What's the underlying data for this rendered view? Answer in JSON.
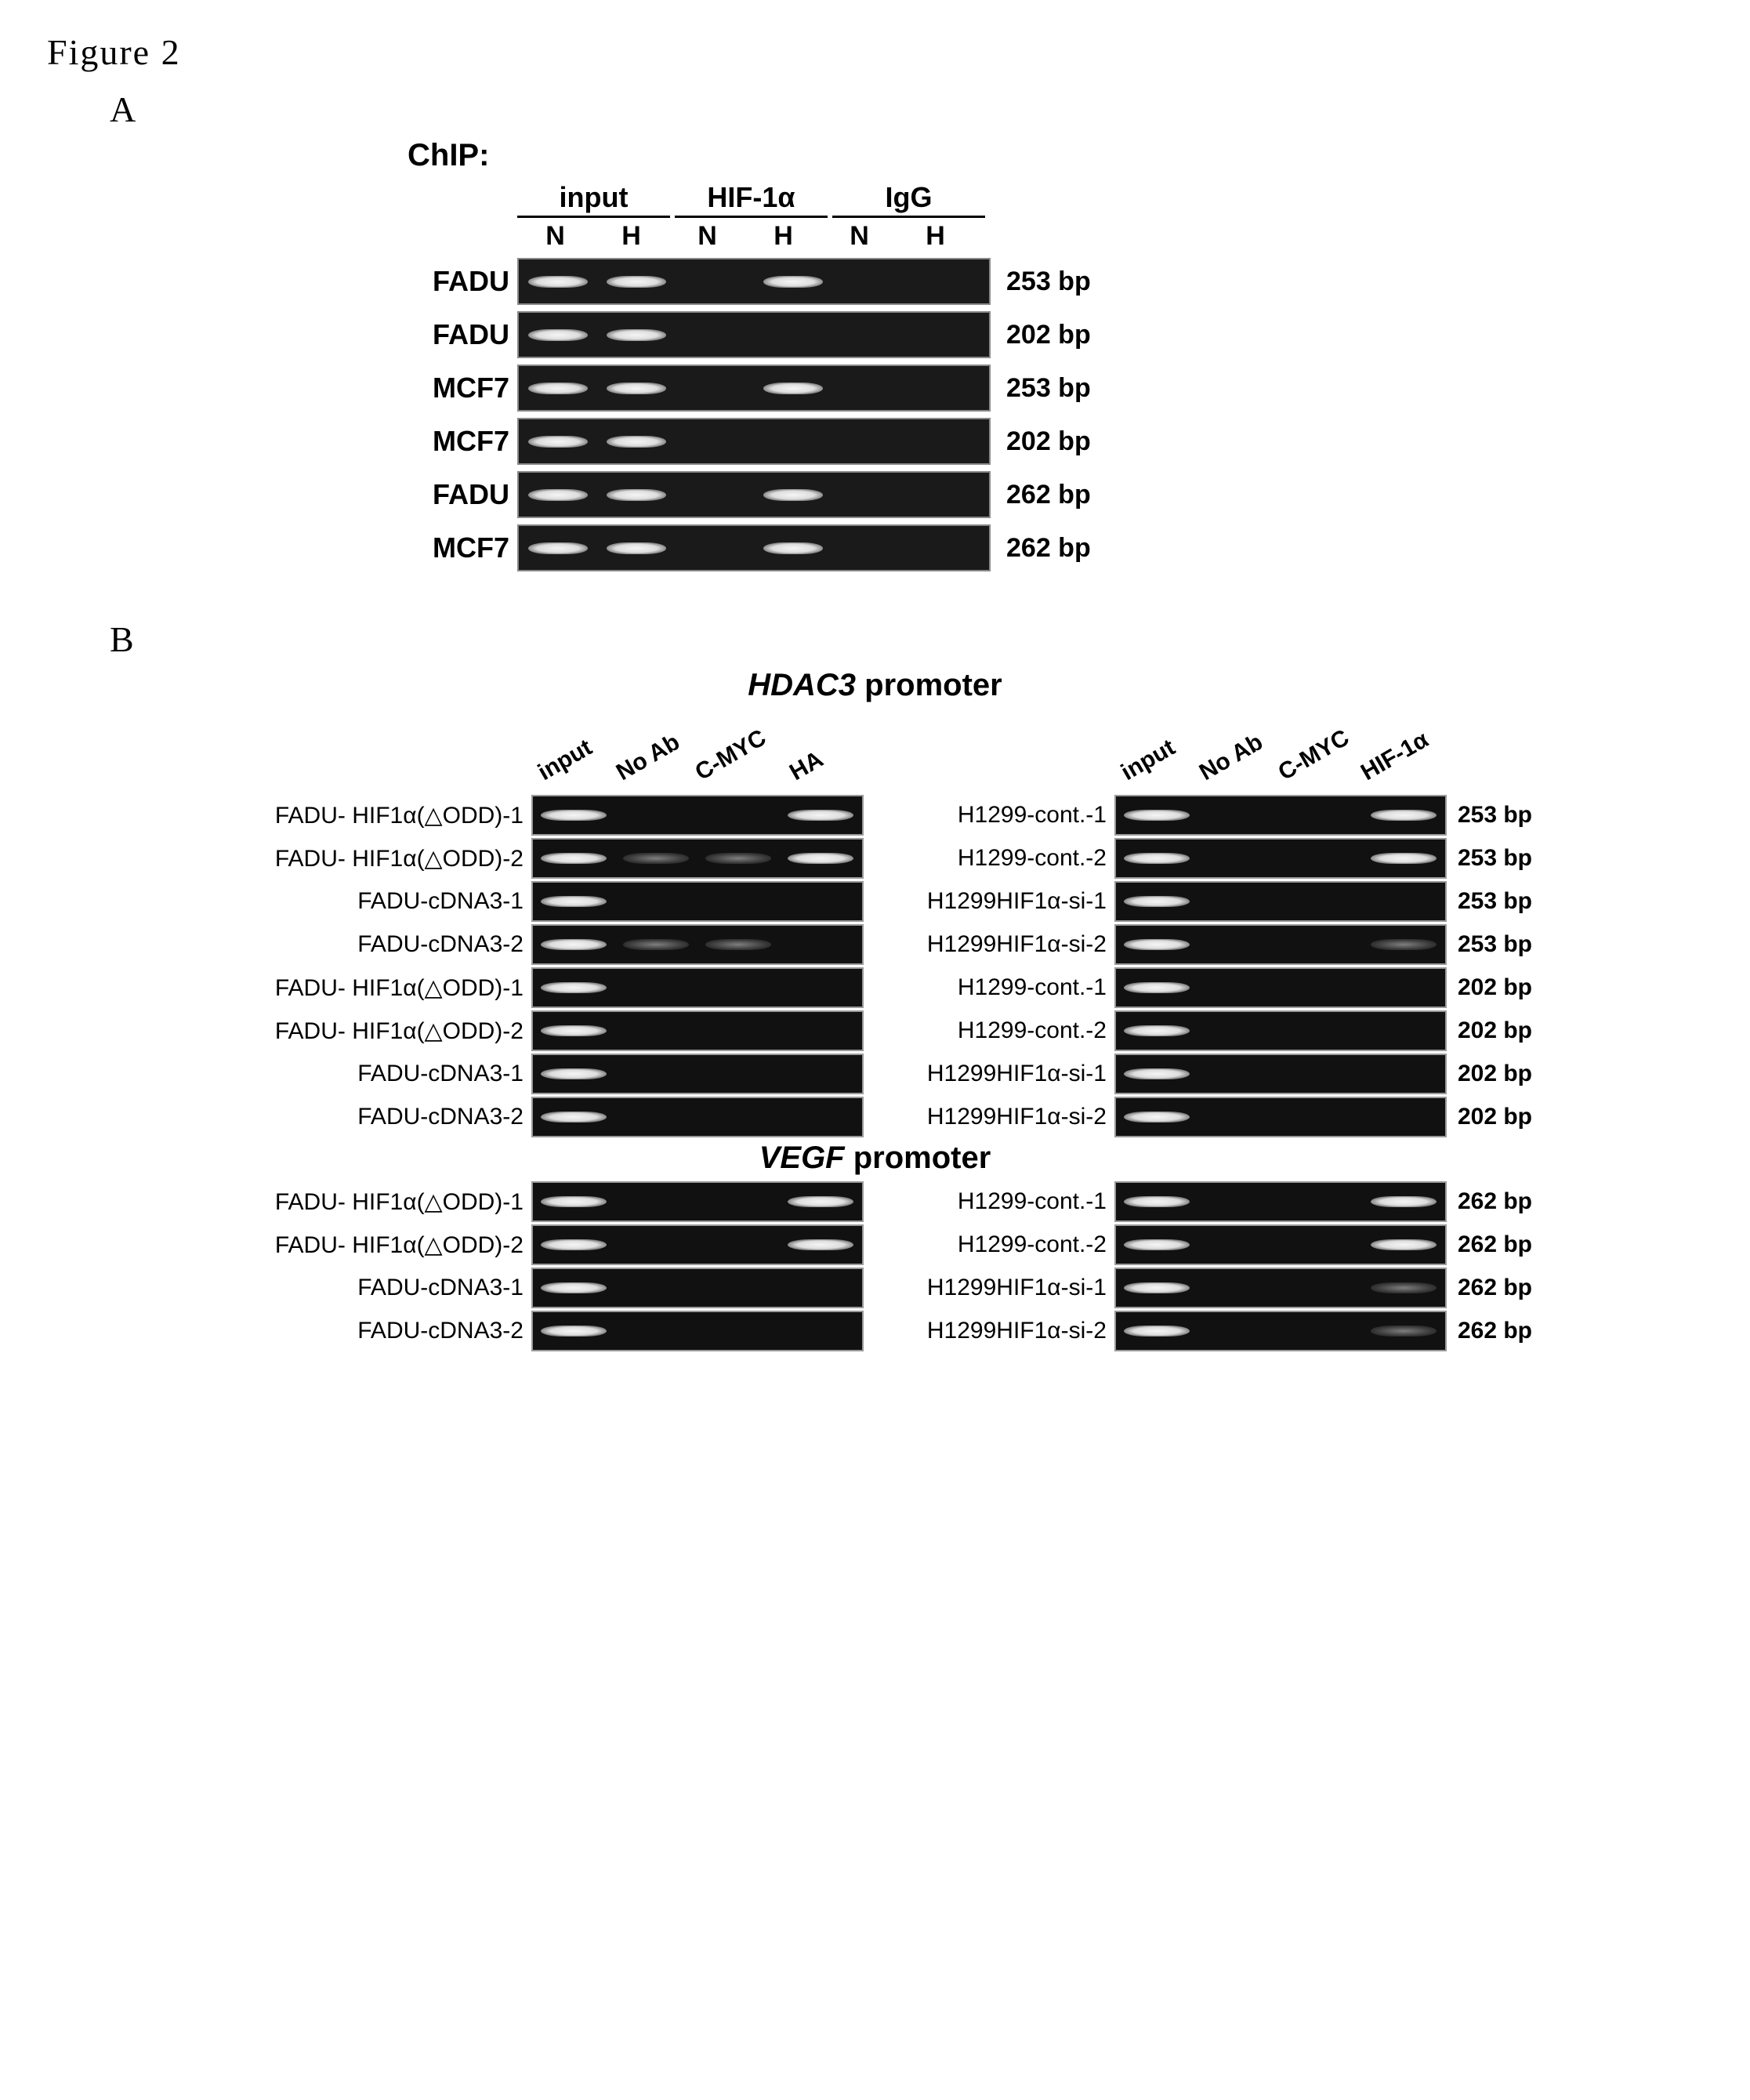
{
  "figure_label": "Figure 2",
  "panelA": {
    "label": "A",
    "chip_title": "ChIP:",
    "top_headers": [
      "input",
      "HIF-1α",
      "IgG"
    ],
    "sub_headers": [
      "N",
      "H",
      "N",
      "H",
      "N",
      "H"
    ],
    "rows": [
      {
        "label": "FADU",
        "bp": "253 bp",
        "bands": [
          1,
          1,
          0,
          1,
          0,
          0
        ]
      },
      {
        "label": "FADU",
        "bp": "202 bp",
        "bands": [
          1,
          1,
          0,
          0,
          0,
          0
        ]
      },
      {
        "label": "MCF7",
        "bp": "253 bp",
        "bands": [
          1,
          1,
          0,
          1,
          0,
          0
        ]
      },
      {
        "label": "MCF7",
        "bp": "202 bp",
        "bands": [
          1,
          1,
          0,
          0,
          0,
          0
        ]
      },
      {
        "label": "FADU",
        "bp": "262 bp",
        "bands": [
          1,
          1,
          0,
          1,
          0,
          0
        ]
      },
      {
        "label": "MCF7",
        "bp": "262 bp",
        "bands": [
          1,
          1,
          0,
          1,
          0,
          0
        ]
      }
    ]
  },
  "panelB": {
    "label": "B",
    "sections": [
      {
        "title_italic": "HDAC3",
        "title_rest": " promoter"
      },
      {
        "title_italic": "VEGF",
        "title_rest": " promoter"
      }
    ],
    "left_headers": [
      "input",
      "No Ab",
      "C-MYC",
      "HA"
    ],
    "right_headers": [
      "input",
      "No Ab",
      "C-MYC",
      "HIF-1α"
    ],
    "hdac3_left": [
      {
        "label": "FADU- HIF1α(△ODD)-1",
        "bands": [
          1,
          0,
          0,
          1
        ]
      },
      {
        "label": "FADU- HIF1α(△ODD)-2",
        "bands": [
          1,
          0.3,
          0.3,
          1
        ]
      },
      {
        "label": "FADU-cDNA3-1",
        "bands": [
          1,
          0,
          0,
          0
        ]
      },
      {
        "label": "FADU-cDNA3-2",
        "bands": [
          1,
          0.3,
          0.3,
          0
        ]
      },
      {
        "label": "FADU- HIF1α(△ODD)-1",
        "bands": [
          1,
          0,
          0,
          0
        ]
      },
      {
        "label": "FADU- HIF1α(△ODD)-2",
        "bands": [
          1,
          0,
          0,
          0
        ]
      },
      {
        "label": "FADU-cDNA3-1",
        "bands": [
          1,
          0,
          0,
          0
        ]
      },
      {
        "label": "FADU-cDNA3-2",
        "bands": [
          1,
          0,
          0,
          0
        ]
      }
    ],
    "hdac3_right": [
      {
        "label": "H1299-cont.-1",
        "bp": "253 bp",
        "bands": [
          1,
          0,
          0,
          1
        ]
      },
      {
        "label": "H1299-cont.-2",
        "bp": "253 bp",
        "bands": [
          1,
          0,
          0,
          1
        ]
      },
      {
        "label": "H1299HIF1α-si-1",
        "bp": "253 bp",
        "bands": [
          1,
          0,
          0,
          0
        ]
      },
      {
        "label": "H1299HIF1α-si-2",
        "bp": "253 bp",
        "bands": [
          1,
          0,
          0,
          0.3
        ]
      },
      {
        "label": "H1299-cont.-1",
        "bp": "202 bp",
        "bands": [
          1,
          0,
          0,
          0
        ]
      },
      {
        "label": "H1299-cont.-2",
        "bp": "202 bp",
        "bands": [
          1,
          0,
          0,
          0
        ]
      },
      {
        "label": "H1299HIF1α-si-1",
        "bp": "202 bp",
        "bands": [
          1,
          0,
          0,
          0
        ]
      },
      {
        "label": "H1299HIF1α-si-2",
        "bp": "202 bp",
        "bands": [
          1,
          0,
          0,
          0
        ]
      }
    ],
    "vegf_left": [
      {
        "label": "FADU- HIF1α(△ODD)-1",
        "bands": [
          1,
          0,
          0,
          1
        ]
      },
      {
        "label": "FADU- HIF1α(△ODD)-2",
        "bands": [
          1,
          0,
          0,
          1
        ]
      },
      {
        "label": "FADU-cDNA3-1",
        "bands": [
          1,
          0,
          0,
          0
        ]
      },
      {
        "label": "FADU-cDNA3-2",
        "bands": [
          1,
          0,
          0,
          0
        ]
      }
    ],
    "vegf_right": [
      {
        "label": "H1299-cont.-1",
        "bp": "262 bp",
        "bands": [
          1,
          0,
          0,
          1
        ]
      },
      {
        "label": "H1299-cont.-2",
        "bp": "262 bp",
        "bands": [
          1,
          0,
          0,
          1
        ]
      },
      {
        "label": "H1299HIF1α-si-1",
        "bp": "262 bp",
        "bands": [
          1,
          0,
          0,
          0.5
        ]
      },
      {
        "label": "H1299HIF1α-si-2",
        "bp": "262 bp",
        "bands": [
          1,
          0,
          0,
          0.5
        ]
      }
    ]
  },
  "colors": {
    "gel_bg": "#111111",
    "band": "#f0f0f0",
    "page_bg": "#ffffff"
  }
}
